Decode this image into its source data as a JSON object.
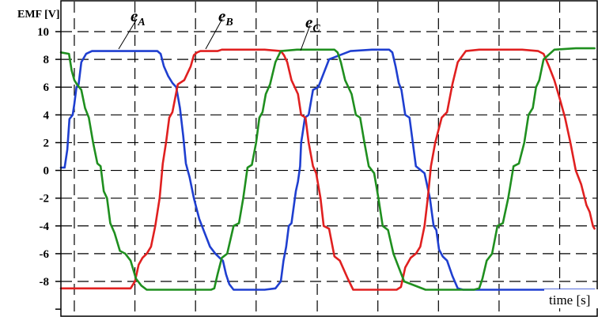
{
  "chart_data": {
    "type": "line",
    "title": "",
    "ylabel": "EMF [V]",
    "xlabel": "time [s]",
    "ylim": [
      -10,
      10
    ],
    "xlim": [
      0,
      10
    ],
    "yticks": [
      -8,
      -6,
      -4,
      -2,
      0,
      2,
      4,
      6,
      8,
      10
    ],
    "ytick_labels": [
      "-8",
      "-6",
      "-4",
      "-2",
      "0",
      "2",
      "4",
      "6",
      "8",
      "10"
    ],
    "xticks": [
      0.25,
      1.38,
      2.51,
      3.64,
      4.78,
      5.91,
      7.04,
      8.17,
      9.3
    ],
    "grid": true,
    "grid_style": "dashed",
    "x_values_estimated": true,
    "series": [
      {
        "name": "A",
        "label_symbol": "e",
        "label_subscript": "A",
        "color": "#1f3fd0",
        "x": [
          0.0,
          0.07,
          0.12,
          0.16,
          0.22,
          0.25,
          0.29,
          0.33,
          0.38,
          0.47,
          0.58,
          0.8,
          1.2,
          1.6,
          1.8,
          1.86,
          1.92,
          2.0,
          2.08,
          2.15,
          2.22,
          2.28,
          2.33,
          2.4,
          2.48,
          2.58,
          2.68,
          2.78,
          2.88,
          2.96,
          3.02,
          3.08,
          3.14,
          3.22,
          3.3,
          3.4,
          3.5,
          3.6,
          3.7,
          3.8,
          4.0,
          4.1,
          4.15,
          4.2,
          4.25,
          4.3,
          4.38,
          4.42,
          4.46,
          4.48,
          4.5,
          4.55,
          4.62,
          4.7,
          4.8,
          5.0,
          5.4,
          5.8,
          6.12,
          6.18,
          6.24,
          6.3,
          6.35,
          6.42,
          6.5,
          6.62,
          6.78,
          6.88,
          6.95,
          7.0,
          7.05,
          7.12,
          7.2,
          7.3,
          7.4,
          7.5,
          7.6,
          7.65,
          7.7,
          7.8,
          7.9,
          8.0,
          8.3,
          8.7,
          9.0,
          9.5,
          9.95
        ],
        "y": [
          0.2,
          0.2,
          1.5,
          3.7,
          4.0,
          4.8,
          6.0,
          6.2,
          7.8,
          8.4,
          8.6,
          8.6,
          8.6,
          8.6,
          8.6,
          8.4,
          7.5,
          6.8,
          6.3,
          6.0,
          4.5,
          2.5,
          0.5,
          -0.5,
          -2.0,
          -3.5,
          -4.5,
          -5.5,
          -6.0,
          -6.3,
          -6.5,
          -7.5,
          -8.2,
          -8.6,
          -8.6,
          -8.6,
          -8.6,
          -8.6,
          -8.6,
          -8.6,
          -8.5,
          -8.0,
          -6.5,
          -5.5,
          -4.0,
          -3.8,
          -1.5,
          -0.8,
          0.3,
          2.0,
          2.5,
          3.8,
          4.0,
          5.8,
          6.0,
          8.0,
          8.6,
          8.7,
          8.7,
          8.5,
          7.5,
          6.3,
          5.8,
          4.0,
          3.8,
          0.3,
          -0.2,
          -2.0,
          -4.0,
          -4.3,
          -5.7,
          -6.2,
          -6.5,
          -7.6,
          -8.5,
          -8.6,
          -8.6,
          -8.6,
          -8.6,
          -8.6,
          -8.6,
          -8.6,
          -8.6,
          -8.6,
          -8.6,
          -8.6,
          -8.6
        ]
      },
      {
        "name": "B",
        "label_symbol": "e",
        "label_subscript": "B",
        "color": "#e02020",
        "x": [
          0.0,
          0.5,
          1.0,
          1.3,
          1.38,
          1.45,
          1.52,
          1.6,
          1.68,
          1.76,
          1.84,
          1.9,
          1.96,
          2.02,
          2.08,
          2.18,
          2.3,
          2.42,
          2.48,
          2.54,
          2.6,
          2.7,
          2.82,
          2.92,
          3.0,
          3.4,
          3.8,
          4.1,
          4.16,
          4.22,
          4.3,
          4.36,
          4.42,
          4.48,
          4.56,
          4.62,
          4.7,
          4.76,
          4.84,
          4.9,
          5.0,
          5.1,
          5.2,
          5.35,
          5.45,
          5.55,
          5.65,
          5.8,
          6.0,
          6.2,
          6.26,
          6.34,
          6.42,
          6.52,
          6.62,
          6.7,
          6.78,
          6.84,
          6.9,
          6.98,
          7.1,
          7.2,
          7.3,
          7.4,
          7.55,
          7.8,
          8.2,
          8.6,
          8.9,
          9.0,
          9.1,
          9.2,
          9.3,
          9.4,
          9.5,
          9.6,
          9.7,
          9.8,
          9.86,
          9.92,
          9.95
        ],
        "y": [
          -8.5,
          -8.5,
          -8.5,
          -8.5,
          -8.0,
          -6.8,
          -6.3,
          -6.0,
          -5.5,
          -4.0,
          -2.0,
          0.5,
          2.0,
          3.8,
          4.2,
          6.2,
          6.5,
          7.5,
          8.3,
          8.5,
          8.6,
          8.6,
          8.6,
          8.6,
          8.7,
          8.7,
          8.7,
          8.6,
          8.3,
          7.8,
          6.5,
          6.0,
          5.5,
          4.0,
          3.8,
          2.0,
          0.3,
          -0.2,
          -2.0,
          -4.0,
          -4.2,
          -6.2,
          -6.5,
          -7.8,
          -8.6,
          -8.6,
          -8.6,
          -8.6,
          -8.6,
          -8.6,
          -8.6,
          -8.4,
          -7.0,
          -6.3,
          -6.0,
          -5.5,
          -4.0,
          -2.0,
          0.3,
          2.0,
          3.8,
          4.2,
          6.2,
          7.8,
          8.6,
          8.7,
          8.7,
          8.7,
          8.6,
          8.4,
          7.5,
          6.5,
          5.2,
          3.8,
          2.0,
          0.0,
          -1.0,
          -2.5,
          -3.0,
          -4.0,
          -4.2
        ]
      },
      {
        "name": "C",
        "label_symbol": "e",
        "label_subscript": "C",
        "color": "#1f8f1f",
        "x": [
          0.0,
          0.15,
          0.2,
          0.25,
          0.3,
          0.38,
          0.45,
          0.52,
          0.6,
          0.68,
          0.74,
          0.8,
          0.86,
          0.92,
          1.0,
          1.1,
          1.2,
          1.3,
          1.4,
          1.5,
          1.6,
          1.8,
          2.2,
          2.6,
          2.8,
          2.86,
          2.92,
          3.0,
          3.1,
          3.22,
          3.32,
          3.4,
          3.48,
          3.56,
          3.64,
          3.7,
          3.76,
          3.82,
          3.9,
          4.0,
          4.1,
          4.4,
          4.8,
          5.1,
          5.16,
          5.22,
          5.3,
          5.36,
          5.42,
          5.5,
          5.58,
          5.66,
          5.74,
          5.84,
          5.92,
          6.0,
          6.1,
          6.2,
          6.4,
          6.8,
          7.2,
          7.7,
          7.8,
          7.86,
          7.94,
          8.04,
          8.14,
          8.24,
          8.34,
          8.44,
          8.54,
          8.64,
          8.72,
          8.8,
          8.86,
          8.92,
          9.0,
          9.2,
          9.6,
          9.95
        ],
        "y": [
          8.5,
          8.4,
          7.2,
          6.5,
          6.2,
          5.8,
          4.5,
          3.8,
          2.0,
          0.5,
          0.3,
          -1.5,
          -2.0,
          -3.8,
          -4.5,
          -5.8,
          -6.0,
          -6.5,
          -7.8,
          -8.3,
          -8.6,
          -8.6,
          -8.6,
          -8.6,
          -8.6,
          -8.5,
          -7.5,
          -6.3,
          -6.0,
          -4.0,
          -3.8,
          -2.0,
          0.2,
          0.4,
          2.0,
          3.8,
          4.2,
          5.5,
          6.2,
          7.8,
          8.6,
          8.7,
          8.7,
          8.7,
          8.5,
          7.8,
          6.5,
          6.0,
          5.5,
          4.0,
          3.8,
          2.0,
          0.3,
          -0.2,
          -2.0,
          -4.0,
          -4.3,
          -6.0,
          -8.0,
          -8.6,
          -8.6,
          -8.6,
          -8.5,
          -7.8,
          -6.5,
          -6.0,
          -4.0,
          -3.8,
          -2.0,
          0.3,
          0.5,
          2.0,
          4.0,
          4.5,
          6.0,
          6.5,
          8.0,
          8.7,
          8.8,
          8.8
        ]
      }
    ]
  }
}
